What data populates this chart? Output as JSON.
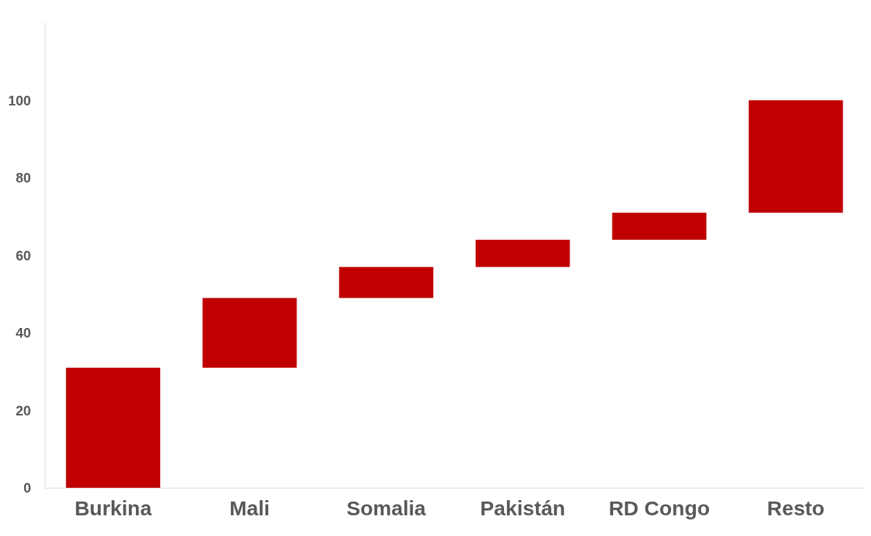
{
  "chart_data": {
    "type": "bar",
    "categories": [
      "Burkina",
      "Mali",
      "Somalia",
      "Pakistán",
      "RD Congo",
      "Resto"
    ],
    "base": [
      0,
      31,
      49,
      57,
      64,
      71
    ],
    "values": [
      31,
      18,
      8,
      7,
      7,
      29
    ],
    "color": "#c00000",
    "ylim": [
      0,
      120
    ],
    "yticks": [
      0,
      20,
      40,
      60,
      80,
      100
    ],
    "grid": false
  }
}
